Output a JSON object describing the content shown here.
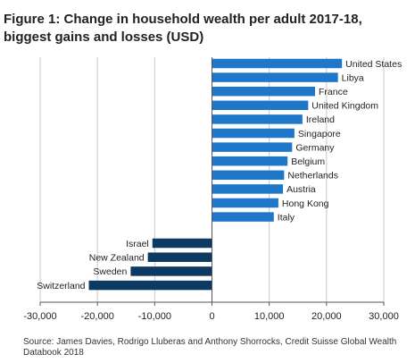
{
  "title": {
    "line1": "Figure 1: Change in household wealth per adult 2017-18,",
    "line2": "biggest gains and losses (USD)"
  },
  "source": "Source: James Davies, Rodrigo Lluberas and Anthony Shorrocks, Credit Suisse Global Wealth Databook 2018",
  "colors": {
    "gain": "#1f77c9",
    "loss": "#0d3a63",
    "grid": "#c8c8c8",
    "axis": "#555555",
    "text": "#222222"
  },
  "chart_data": {
    "type": "bar",
    "orientation": "horizontal",
    "title": "Figure 1: Change in household wealth per adult 2017-18, biggest gains and losses (USD)",
    "xlabel": "",
    "ylabel": "",
    "xlim": [
      -30000,
      30000
    ],
    "xticks": [
      -30000,
      -20000,
      -10000,
      0,
      10000,
      20000,
      30000
    ],
    "xtick_labels": [
      "-30,000",
      "-20,000",
      "-10,000",
      "0",
      "10,000",
      "20,000",
      "30,000"
    ],
    "grid": "vertical",
    "categories": [
      "United States",
      "Libya",
      "France",
      "United Kingdom",
      "Ireland",
      "Singapore",
      "Germany",
      "Belgium",
      "Netherlands",
      "Austria",
      "Hong Kong",
      "Italy",
      "Israel",
      "New Zealand",
      "Sweden",
      "Switzerland"
    ],
    "values": [
      22700,
      22000,
      18000,
      16800,
      15800,
      14400,
      14000,
      13200,
      12600,
      12400,
      11600,
      10800,
      -10400,
      -11200,
      -14200,
      -21500
    ]
  }
}
